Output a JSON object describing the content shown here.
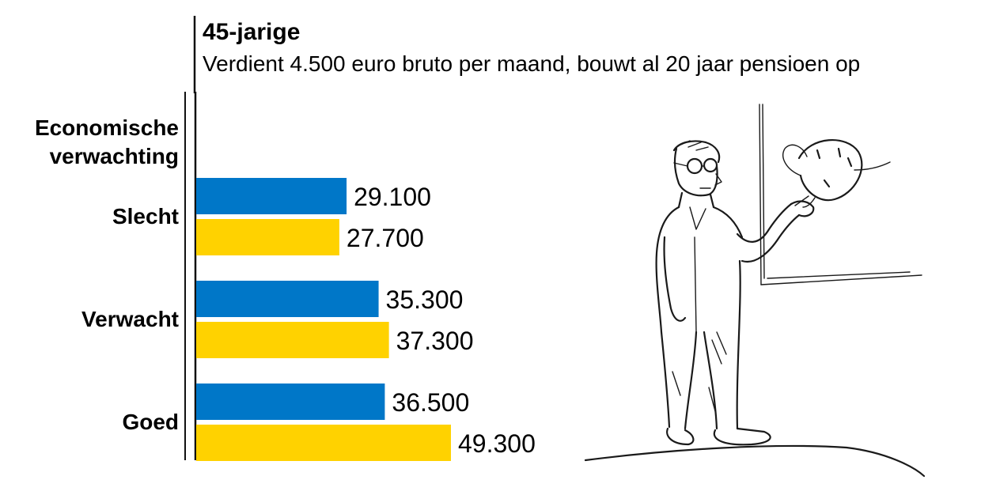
{
  "header": {
    "title": "45-jarige",
    "subtitle": "Verdient 4.500 euro bruto per maand, bouwt al 20 jaar pensioen op"
  },
  "category_axis_title": [
    "Economische",
    "verwachting"
  ],
  "colors": {
    "series_a": "#0077c8",
    "series_b": "#ffd200",
    "axis": "#111111"
  },
  "illustration": {
    "icon": "man-pointing-at-balloon-drawing"
  },
  "chart_data": {
    "type": "bar",
    "orientation": "horizontal",
    "title": "45-jarige",
    "subtitle": "Verdient 4.500 euro bruto per maand, bouwt al 20 jaar pensioen op",
    "category_axis_title": "Economische verwachting",
    "categories": [
      "Slecht",
      "Verwacht",
      "Goed"
    ],
    "series": [
      {
        "values": [
          29100,
          35300,
          36500
        ],
        "value_labels": [
          "29.100",
          "35.300",
          "36.500"
        ],
        "color": "#0077c8"
      },
      {
        "values": [
          27700,
          37300,
          49300
        ],
        "value_labels": [
          "27.700",
          "37.300",
          "49.300"
        ],
        "color": "#ffd200"
      }
    ],
    "xlim": [
      0,
      49300
    ],
    "grid": false,
    "legend": false
  }
}
